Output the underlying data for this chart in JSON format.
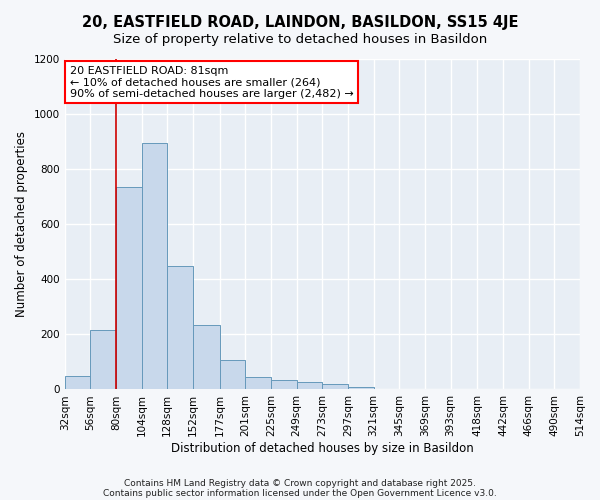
{
  "title": "20, EASTFIELD ROAD, LAINDON, BASILDON, SS15 4JE",
  "subtitle": "Size of property relative to detached houses in Basildon",
  "xlabel": "Distribution of detached houses by size in Basildon",
  "ylabel": "Number of detached properties",
  "bar_color": "#c8d8eb",
  "bar_edge_color": "#6699bb",
  "background_color": "#e8eef5",
  "grid_color": "#ffffff",
  "annotation_text": "20 EASTFIELD ROAD: 81sqm\n← 10% of detached houses are smaller (264)\n90% of semi-detached houses are larger (2,482) →",
  "vline_x": 80,
  "vline_color": "#cc0000",
  "ylim": [
    0,
    1200
  ],
  "yticks": [
    0,
    200,
    400,
    600,
    800,
    1000,
    1200
  ],
  "bin_edges": [
    32,
    56,
    80,
    104,
    128,
    152,
    177,
    201,
    225,
    249,
    273,
    297,
    321,
    345,
    369,
    393,
    418,
    442,
    466,
    490,
    514
  ],
  "bin_values": [
    50,
    215,
    735,
    895,
    450,
    235,
    108,
    45,
    35,
    28,
    20,
    10,
    0,
    0,
    0,
    0,
    0,
    0,
    0,
    0
  ],
  "footer_line1": "Contains HM Land Registry data © Crown copyright and database right 2025.",
  "footer_line2": "Contains public sector information licensed under the Open Government Licence v3.0.",
  "title_fontsize": 10.5,
  "subtitle_fontsize": 9.5,
  "axis_label_fontsize": 8.5,
  "tick_fontsize": 7.5,
  "footer_fontsize": 6.5,
  "annot_fontsize": 8.0,
  "fig_bg": "#f5f7fa"
}
